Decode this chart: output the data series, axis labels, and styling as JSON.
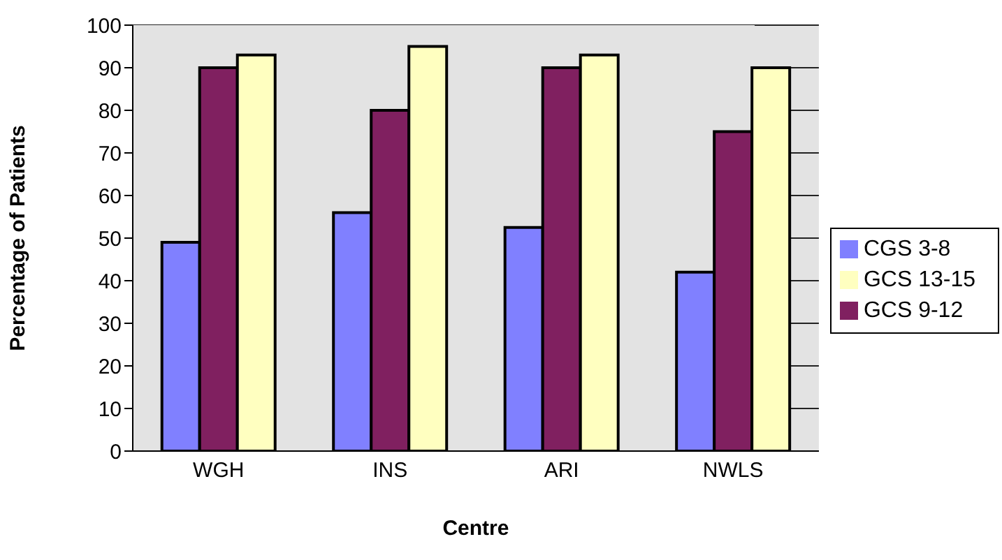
{
  "chart_data": {
    "type": "bar",
    "xlabel": "Centre",
    "ylabel": "Percentage of Patients",
    "categories": [
      "WGH",
      "INS",
      "ARI",
      "NWLS"
    ],
    "series": [
      {
        "name": "CGS 3-8",
        "color": "#8080ff",
        "values": [
          49,
          56,
          52.5,
          42
        ]
      },
      {
        "name": "GCS 9-12",
        "color": "#802060",
        "values": [
          90,
          80,
          90,
          75
        ]
      },
      {
        "name": "GCS 13-15",
        "color": "#ffffc0",
        "values": [
          93,
          95,
          93,
          90
        ]
      }
    ],
    "ylim": [
      0,
      100
    ],
    "yticks": [
      0,
      10,
      20,
      30,
      40,
      50,
      60,
      70,
      80,
      90,
      100
    ],
    "grid": "y",
    "legend": "right"
  }
}
